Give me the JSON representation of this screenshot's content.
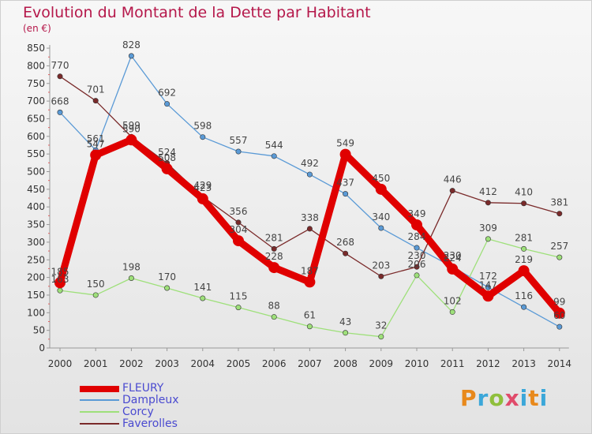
{
  "title": "Evolution du Montant de la Dette par Habitant",
  "subtitle": "(en €)",
  "logo": "Proxiti",
  "chart_data": {
    "type": "line",
    "title": "Evolution du Montant de la Dette par Habitant",
    "subtitle": "(en €)",
    "x": [
      "2000",
      "2001",
      "2002",
      "2003",
      "2004",
      "2005",
      "2006",
      "2007",
      "2008",
      "2009",
      "2010",
      "2011",
      "2012",
      "2013",
      "2014"
    ],
    "ylim": [
      0,
      850
    ],
    "yticks": [
      0,
      50,
      100,
      150,
      200,
      250,
      300,
      350,
      400,
      450,
      500,
      550,
      600,
      650,
      700,
      750,
      800,
      850
    ],
    "grid": false,
    "legend_position": "bottom-left",
    "series": [
      {
        "name": "FLEURY",
        "color": "#e00000",
        "values": [
          185,
          547,
          590,
          508,
          423,
          304,
          228,
          187,
          549,
          450,
          349,
          224,
          147,
          219,
          99
        ],
        "labels": [
          "185",
          "547",
          "590",
          "508",
          "423",
          "304",
          "228",
          "187",
          "549",
          "450",
          "349",
          "224",
          "147",
          "219",
          "99"
        ]
      },
      {
        "name": "Dampleux",
        "color": "#5a9ad6",
        "values": [
          668,
          561,
          828,
          692,
          598,
          557,
          544,
          492,
          437,
          340,
          284,
          230,
          172,
          116,
          60
        ],
        "labels": [
          "668",
          "561",
          "828",
          "692",
          "598",
          "557",
          "544",
          "492",
          "437",
          "340",
          "284",
          "230",
          "172",
          "116",
          "60"
        ]
      },
      {
        "name": "Corcy",
        "color": "#9ee07a",
        "values": [
          163,
          150,
          198,
          170,
          141,
          115,
          88,
          61,
          43,
          32,
          206,
          102,
          309,
          281,
          257
        ],
        "labels": [
          "163",
          "150",
          "198",
          "170",
          "141",
          "115",
          "88",
          "61",
          "43",
          "32",
          "206",
          "102",
          "309",
          "281",
          "257"
        ]
      },
      {
        "name": "Faverolles",
        "color": "#7a2a2a",
        "values": [
          770,
          701,
          599,
          524,
          429,
          356,
          281,
          338,
          268,
          203,
          230,
          446,
          412,
          410,
          381
        ],
        "labels": [
          "770",
          "701",
          "599",
          "524",
          "429",
          "356",
          "281",
          "338",
          "268",
          "203",
          "230",
          "446",
          "412",
          "410",
          "381"
        ]
      }
    ]
  }
}
